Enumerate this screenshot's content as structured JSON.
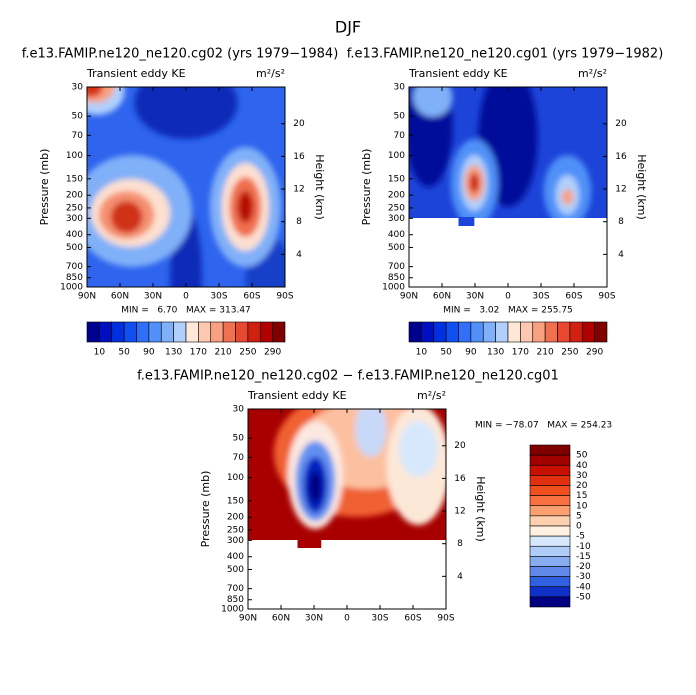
{
  "title": "DJF",
  "chart_data": [
    {
      "type": "contour",
      "title": "f.e13.FAMIP.ne120_ne120.cg02 (yrs 1979−1984)",
      "left_label": "Transient eddy KE",
      "units": "m²/s²",
      "ylabel": "Pressure (mb)",
      "y2label": "Height (km)",
      "xlim": [
        90,
        -90
      ],
      "xticks": [
        {
          "value": 90,
          "label": "90N"
        },
        {
          "value": 60,
          "label": "60N"
        },
        {
          "value": 30,
          "label": "30N"
        },
        0,
        {
          "value": -30,
          "label": "30S"
        },
        {
          "value": -60,
          "label": "60S"
        },
        {
          "value": -90,
          "label": "90S"
        }
      ],
      "ylim": [
        1000,
        30
      ],
      "ylog": true,
      "yticks": [
        30,
        50,
        70,
        100,
        150,
        200,
        250,
        300,
        400,
        500,
        700,
        850,
        1000
      ],
      "y2lim": [
        0,
        24.5
      ],
      "y2ticks": [
        4,
        8,
        12,
        16,
        20
      ],
      "stats": "MIN =   6.70   MAX = 313.47",
      "colorbar": {
        "orientation": "horizontal",
        "colors": [
          "#000090",
          "#0010c0",
          "#0030e0",
          "#1050f0",
          "#3070f8",
          "#5090f8",
          "#80b0f8",
          "#b0d0fb",
          "#ffe8d8",
          "#fcc8b0",
          "#f8a080",
          "#f07050",
          "#e84830",
          "#d02010",
          "#b00000",
          "#800000"
        ],
        "ticks": [
          10,
          50,
          90,
          130,
          170,
          210,
          250,
          290
        ]
      }
    },
    {
      "type": "contour",
      "title": "f.e13.FAMIP.ne120_ne120.cg01 (yrs 1979−1982)",
      "left_label": "Transient eddy KE",
      "units": "m²/s²",
      "ylabel": "Pressure (mb)",
      "y2label": "Height (km)",
      "xlim": [
        90,
        -90
      ],
      "xticks": [
        {
          "value": 90,
          "label": "90N"
        },
        {
          "value": 60,
          "label": "60N"
        },
        {
          "value": 30,
          "label": "30N"
        },
        0,
        {
          "value": -30,
          "label": "30S"
        },
        {
          "value": -60,
          "label": "60S"
        },
        {
          "value": -90,
          "label": "90S"
        }
      ],
      "ylim": [
        1000,
        30
      ],
      "ylog": true,
      "yticks": [
        30,
        50,
        70,
        100,
        150,
        200,
        250,
        300,
        400,
        500,
        700,
        850,
        1000
      ],
      "y2lim": [
        0,
        24.5
      ],
      "y2ticks": [
        4,
        8,
        12,
        16,
        20
      ],
      "stats": "MIN =   3.02   MAX = 255.75",
      "colorbar": {
        "orientation": "horizontal",
        "colors": [
          "#000090",
          "#0010c0",
          "#0030e0",
          "#1050f0",
          "#3070f8",
          "#5090f8",
          "#80b0f8",
          "#b0d0fb",
          "#ffe8d8",
          "#fcc8b0",
          "#f8a080",
          "#f07050",
          "#e84830",
          "#d02010",
          "#b00000",
          "#800000"
        ],
        "ticks": [
          10,
          50,
          90,
          130,
          170,
          210,
          250,
          290
        ]
      }
    },
    {
      "type": "contour",
      "title": "f.e13.FAMIP.ne120_ne120.cg02 − f.e13.FAMIP.ne120_ne120.cg01",
      "left_label": "Transient eddy KE",
      "units": "m²/s²",
      "ylabel": "Pressure (mb)",
      "y2label": "Height (km)",
      "xlim": [
        90,
        -90
      ],
      "xticks": [
        {
          "value": 90,
          "label": "90N"
        },
        {
          "value": 60,
          "label": "60N"
        },
        {
          "value": 30,
          "label": "30N"
        },
        0,
        {
          "value": -30,
          "label": "30S"
        },
        {
          "value": -60,
          "label": "60S"
        },
        {
          "value": -90,
          "label": "90S"
        }
      ],
      "ylim": [
        1000,
        30
      ],
      "ylog": true,
      "yticks": [
        30,
        50,
        70,
        100,
        150,
        200,
        250,
        300,
        400,
        500,
        700,
        850,
        1000
      ],
      "y2lim": [
        0,
        24.5
      ],
      "y2ticks": [
        4,
        8,
        12,
        16,
        20
      ],
      "stats": "MIN = −78.07   MAX = 254.23",
      "colorbar": {
        "orientation": "vertical",
        "colors": [
          "#800000",
          "#a00000",
          "#c81000",
          "#e03010",
          "#f05020",
          "#f87040",
          "#fca070",
          "#fdd0b0",
          "#fff0e0",
          "#d8e8fc",
          "#b0ccf8",
          "#88acf0",
          "#6088e8",
          "#3060e0",
          "#1030c8",
          "#000080"
        ],
        "ticks": [
          50,
          40,
          30,
          20,
          15,
          10,
          5,
          0,
          -5,
          -10,
          -15,
          -20,
          -30,
          -40,
          -50
        ]
      }
    }
  ]
}
